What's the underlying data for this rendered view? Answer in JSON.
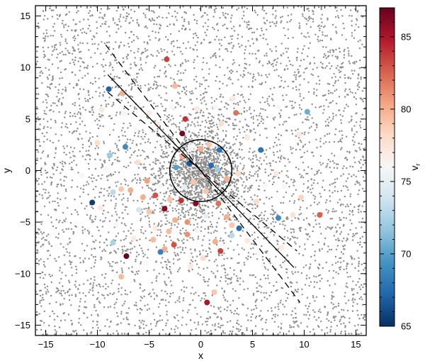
{
  "chart_data": {
    "type": "scatter",
    "title": "",
    "xlabel": "x",
    "ylabel": "y",
    "xlim": [
      -16,
      16
    ],
    "ylim": [
      -16,
      16
    ],
    "x_ticks": [
      -15,
      -10,
      -5,
      0,
      5,
      10,
      15
    ],
    "y_ticks": [
      -15,
      -10,
      -5,
      0,
      5,
      10,
      15
    ],
    "x_tick_labels": [
      "−15",
      "−10",
      "−5",
      "0",
      "5",
      "10",
      "15"
    ],
    "y_tick_labels": [
      "−15",
      "−10",
      "−5",
      "0",
      "5",
      "10",
      "15"
    ],
    "grid": false,
    "background_points": {
      "description_color": "#8c8c8c",
      "uniform_count": 4200,
      "concentrated_count": 1300,
      "concentrated_sigma": 2.2
    },
    "colored_points": [
      {
        "x": -3.3,
        "y": 10.8,
        "v": 83.5
      },
      {
        "x": -8.9,
        "y": 7.9,
        "v": 67.0
      },
      {
        "x": -7.6,
        "y": 7.5,
        "v": 80.0
      },
      {
        "x": -2.5,
        "y": 8.2,
        "v": 79.5
      },
      {
        "x": 10.3,
        "y": 5.7,
        "v": 70.5
      },
      {
        "x": 3.4,
        "y": 5.6,
        "v": 82.0
      },
      {
        "x": -1.5,
        "y": 5.0,
        "v": 84.0
      },
      {
        "x": -1.8,
        "y": 3.6,
        "v": 86.5
      },
      {
        "x": -10.0,
        "y": 2.7,
        "v": 78.0
      },
      {
        "x": -7.3,
        "y": 2.3,
        "v": 69.0
      },
      {
        "x": 5.8,
        "y": 2.0,
        "v": 68.0
      },
      {
        "x": -8.8,
        "y": 1.5,
        "v": 72.0
      },
      {
        "x": -6.1,
        "y": 0.8,
        "v": 78.0
      },
      {
        "x": 1.0,
        "y": 0.5,
        "v": 67.5
      },
      {
        "x": -5.2,
        "y": -1.0,
        "v": 80.5
      },
      {
        "x": -6.8,
        "y": -1.9,
        "v": 80.0
      },
      {
        "x": -7.7,
        "y": -1.8,
        "v": 79.0
      },
      {
        "x": -8.5,
        "y": -2.1,
        "v": 73.0
      },
      {
        "x": 9.7,
        "y": -2.6,
        "v": 78.5
      },
      {
        "x": -10.5,
        "y": -3.1,
        "v": 65.5
      },
      {
        "x": -3.0,
        "y": -2.8,
        "v": 79.0
      },
      {
        "x": -1.9,
        "y": -2.9,
        "v": 84.0
      },
      {
        "x": -0.5,
        "y": -3.2,
        "v": 86.0
      },
      {
        "x": -3.5,
        "y": -3.7,
        "v": 86.0
      },
      {
        "x": 1.7,
        "y": -3.2,
        "v": 82.0
      },
      {
        "x": 2.5,
        "y": -4.5,
        "v": 80.0
      },
      {
        "x": 7.5,
        "y": -4.6,
        "v": 69.0
      },
      {
        "x": 8.9,
        "y": -4.3,
        "v": 77.5
      },
      {
        "x": 11.5,
        "y": -4.3,
        "v": 82.5
      },
      {
        "x": -2.5,
        "y": -4.8,
        "v": 80.0
      },
      {
        "x": -1.3,
        "y": -5.0,
        "v": 81.0
      },
      {
        "x": 3.0,
        "y": -5.3,
        "v": 79.0
      },
      {
        "x": 3.7,
        "y": -5.6,
        "v": 67.5
      },
      {
        "x": -3.1,
        "y": -5.9,
        "v": 79.5
      },
      {
        "x": -1.3,
        "y": -6.2,
        "v": 81.0
      },
      {
        "x": 3.0,
        "y": -6.3,
        "v": 73.0
      },
      {
        "x": -4.6,
        "y": -6.7,
        "v": 79.5
      },
      {
        "x": 4.5,
        "y": -6.8,
        "v": 77.0
      },
      {
        "x": 1.4,
        "y": -6.9,
        "v": 80.0
      },
      {
        "x": -2.6,
        "y": -7.2,
        "v": 83.0
      },
      {
        "x": -3.5,
        "y": -7.6,
        "v": 80.0
      },
      {
        "x": 1.9,
        "y": -7.8,
        "v": 83.5
      },
      {
        "x": -8.5,
        "y": -7.0,
        "v": 72.5
      },
      {
        "x": -7.2,
        "y": -8.3,
        "v": 87.0
      },
      {
        "x": -3.9,
        "y": -7.9,
        "v": 68.5
      },
      {
        "x": -7.7,
        "y": -10.3,
        "v": 79.5
      },
      {
        "x": 1.3,
        "y": -11.8,
        "v": 79.0
      },
      {
        "x": 0.6,
        "y": -12.8,
        "v": 85.0
      },
      {
        "x": -9.2,
        "y": 0.2,
        "v": 76.0
      },
      {
        "x": 4.5,
        "y": 3.2,
        "v": 77.0
      },
      {
        "x": 2.0,
        "y": 4.6,
        "v": 78.0
      },
      {
        "x": -4.2,
        "y": 4.5,
        "v": 77.0
      },
      {
        "x": 0.8,
        "y": 2.5,
        "v": 79.0
      },
      {
        "x": 0.0,
        "y": 2.1,
        "v": 80.0
      },
      {
        "x": -0.9,
        "y": 2.3,
        "v": 76.0
      },
      {
        "x": 1.8,
        "y": 2.0,
        "v": 68.0
      },
      {
        "x": 2.6,
        "y": 1.5,
        "v": 77.0
      },
      {
        "x": -1.8,
        "y": 1.4,
        "v": 80.0
      },
      {
        "x": -1.1,
        "y": 0.7,
        "v": 66.5
      },
      {
        "x": 1.6,
        "y": 0.1,
        "v": 72.0
      },
      {
        "x": -2.4,
        "y": 0.3,
        "v": 70.0
      },
      {
        "x": 0.3,
        "y": -0.5,
        "v": 78.0
      },
      {
        "x": -0.7,
        "y": -1.1,
        "v": 79.0
      },
      {
        "x": 1.2,
        "y": -1.3,
        "v": 77.0
      },
      {
        "x": 2.5,
        "y": -0.8,
        "v": 80.0
      },
      {
        "x": -1.6,
        "y": -1.6,
        "v": 75.0
      },
      {
        "x": 0.5,
        "y": -2.0,
        "v": 79.0
      },
      {
        "x": 3.6,
        "y": -0.3,
        "v": 78.0
      },
      {
        "x": -4.0,
        "y": -1.5,
        "v": 76.0
      },
      {
        "x": -5.6,
        "y": -2.6,
        "v": 80.0
      },
      {
        "x": -4.4,
        "y": -2.4,
        "v": 83.0
      },
      {
        "x": -6.0,
        "y": -3.8,
        "v": 74.0
      },
      {
        "x": -5.0,
        "y": -4.0,
        "v": 79.0
      },
      {
        "x": -4.4,
        "y": -5.6,
        "v": 77.0
      },
      {
        "x": -0.3,
        "y": -5.8,
        "v": 76.0
      },
      {
        "x": 0.5,
        "y": -4.4,
        "v": 75.0
      },
      {
        "x": 4.6,
        "y": -4.3,
        "v": 76.0
      },
      {
        "x": 5.4,
        "y": -3.0,
        "v": 78.0
      },
      {
        "x": 6.2,
        "y": -1.5,
        "v": 76.0
      },
      {
        "x": 7.3,
        "y": -0.3,
        "v": 77.0
      },
      {
        "x": 8.1,
        "y": -1.5,
        "v": 76.0
      },
      {
        "x": -6.3,
        "y": 4.0,
        "v": 76.0
      },
      {
        "x": -7.5,
        "y": 5.5,
        "v": 76.0
      },
      {
        "x": -5.0,
        "y": 5.6,
        "v": 77.0
      },
      {
        "x": -2.8,
        "y": 6.2,
        "v": 76.0
      },
      {
        "x": -0.4,
        "y": 6.0,
        "v": 77.0
      },
      {
        "x": 1.4,
        "y": 6.2,
        "v": 76.0
      },
      {
        "x": 3.1,
        "y": 7.0,
        "v": 77.0
      },
      {
        "x": 7.5,
        "y": 6.2,
        "v": 76.0
      },
      {
        "x": 9.5,
        "y": 3.5,
        "v": 77.0
      },
      {
        "x": -8.2,
        "y": -5.2,
        "v": 76.0
      },
      {
        "x": -6.5,
        "y": -6.6,
        "v": 77.0
      },
      {
        "x": -5.3,
        "y": -9.0,
        "v": 76.0
      },
      {
        "x": -1.0,
        "y": -9.3,
        "v": 77.0
      },
      {
        "x": 0.2,
        "y": -8.5,
        "v": 78.0
      },
      {
        "x": 5.6,
        "y": -8.0,
        "v": 76.0
      },
      {
        "x": 7.8,
        "y": -7.5,
        "v": 77.0
      },
      {
        "x": -9.7,
        "y": -3.6,
        "v": 77.0
      },
      {
        "x": -11.5,
        "y": -0.5,
        "v": 76.0
      },
      {
        "x": -9.6,
        "y": 5.9,
        "v": 77.0
      }
    ],
    "fit_line": {
      "x": [
        -9.0,
        9.0
      ],
      "y": [
        9.3,
        -9.4
      ]
    },
    "confidence_lines": [
      {
        "x": [
          -9.2,
          9.6
        ],
        "y": [
          12.2,
          -12.8
        ]
      },
      {
        "x": [
          -9.0,
          9.3
        ],
        "y": [
          7.6,
          -7.8
        ]
      }
    ],
    "circle": {
      "cx": 0.0,
      "cy": 0.0,
      "r": 3.0
    },
    "colorbar": {
      "label": "v",
      "label_subscript": "r",
      "min": 65,
      "max": 87,
      "ticks": [
        65,
        70,
        75,
        80,
        85
      ],
      "tick_labels": [
        "65",
        "70",
        "75",
        "80",
        "85"
      ],
      "colormap": [
        "#053061",
        "#2166ac",
        "#4393c3",
        "#92c5de",
        "#d1e5f0",
        "#f7f7f7",
        "#fddbc7",
        "#f4a582",
        "#d6604d",
        "#b2182b",
        "#67001f"
      ]
    }
  }
}
